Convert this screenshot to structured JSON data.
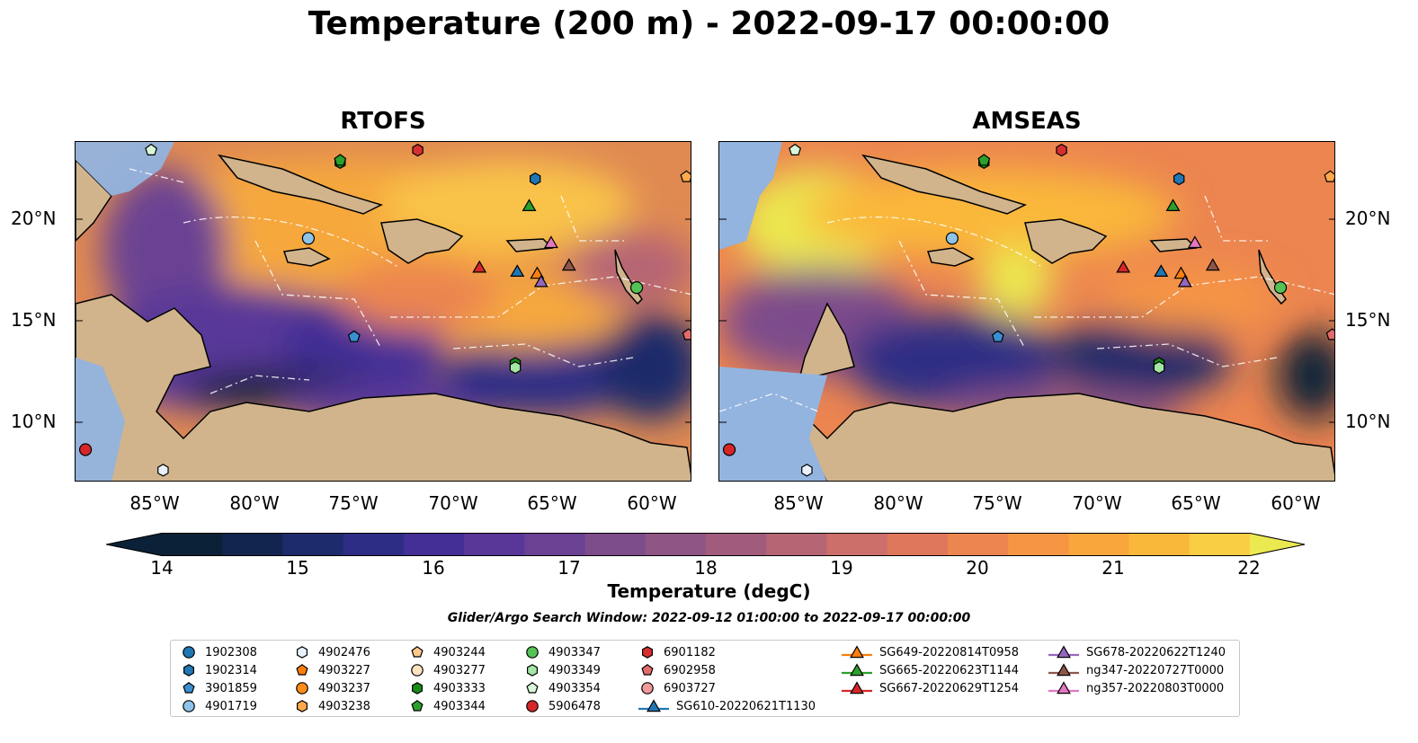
{
  "title": "Temperature (200 m) - 2022-09-17 00:00:00",
  "panels": [
    {
      "title": "RTOFS"
    },
    {
      "title": "AMSEAS"
    }
  ],
  "lat_ticks": [
    "20°N",
    "15°N",
    "10°N"
  ],
  "lon_ticks": [
    "85°W",
    "80°W",
    "75°W",
    "70°W",
    "65°W",
    "60°W"
  ],
  "colorbar": {
    "label": "Temperature (degC)",
    "ticks": [
      "14",
      "15",
      "16",
      "17",
      "18",
      "19",
      "20",
      "21",
      "22"
    ],
    "min": 14,
    "max": 22,
    "step": 0.5,
    "colors": [
      "#0b2138",
      "#12254f",
      "#1d2a6b",
      "#2e2d85",
      "#432f96",
      "#583799",
      "#6b4293",
      "#7d4c8b",
      "#8f5583",
      "#a15c7d",
      "#b66575",
      "#cc6e6a",
      "#df775d",
      "#ec8550",
      "#f69544",
      "#f9a63c",
      "#fab83b",
      "#f9cd44",
      "#ebe950"
    ]
  },
  "search_window": "Glider/Argo Search Window: 2022-09-12 01:00:00 to 2022-09-17 00:00:00",
  "legend": [
    {
      "label": "1902308",
      "marker": "circle",
      "color": "#1f77b4"
    },
    {
      "label": "1902314",
      "marker": "hexagon",
      "color": "#1f77b4"
    },
    {
      "label": "3901859",
      "marker": "pentagon",
      "color": "#3a8fd0"
    },
    {
      "label": "4901719",
      "marker": "circle",
      "color": "#8fc3ea"
    },
    {
      "label": "4902476",
      "marker": "hexagon",
      "color": "#e8f1fb"
    },
    {
      "label": "4903227",
      "marker": "pentagon",
      "color": "#ff7f0e"
    },
    {
      "label": "4903237",
      "marker": "circle",
      "color": "#ff8c1a"
    },
    {
      "label": "4903238",
      "marker": "hexagon",
      "color": "#ffa94d"
    },
    {
      "label": "4903244",
      "marker": "pentagon",
      "color": "#ffc98a"
    },
    {
      "label": "4903277",
      "marker": "circle",
      "color": "#ffe2c0"
    },
    {
      "label": "4903333",
      "marker": "hexagon",
      "color": "#1a8c1a"
    },
    {
      "label": "4903344",
      "marker": "pentagon",
      "color": "#2ca02c"
    },
    {
      "label": "4903347",
      "marker": "circle",
      "color": "#55c255"
    },
    {
      "label": "4903349",
      "marker": "hexagon",
      "color": "#a4e6a4"
    },
    {
      "label": "4903354",
      "marker": "pentagon",
      "color": "#d9f7d9"
    },
    {
      "label": "5906478",
      "marker": "circle",
      "color": "#d62728"
    },
    {
      "label": "6901182",
      "marker": "hexagon",
      "color": "#d62f2f"
    },
    {
      "label": "6902958",
      "marker": "pentagon",
      "color": "#e36a6a"
    },
    {
      "label": "6903727",
      "marker": "circle",
      "color": "#f19a9a"
    },
    {
      "label": "SG610-20220621T1130",
      "marker": "triangle-line",
      "color": "#1f77b4"
    },
    {
      "label": "SG649-20220814T0958",
      "marker": "triangle-line",
      "color": "#ff7f0e"
    },
    {
      "label": "SG665-20220623T1144",
      "marker": "triangle-line",
      "color": "#2ca02c"
    },
    {
      "label": "SG667-20220629T1254",
      "marker": "triangle-line",
      "color": "#d62728"
    },
    {
      "label": "SG678-20220622T1240",
      "marker": "triangle-line",
      "color": "#9467bd"
    },
    {
      "label": "ng347-20220727T0000",
      "marker": "triangle-line",
      "color": "#8c564b"
    },
    {
      "label": "ng357-20220803T0000",
      "marker": "triangle-line",
      "color": "#e377c2"
    }
  ],
  "map_extent": {
    "lon": [
      -89,
      -58
    ],
    "lat": [
      7.2,
      23.8
    ]
  },
  "platforms": [
    {
      "lon": -85.2,
      "lat": 23.4,
      "marker": "pentagon",
      "color": "#d9f7d9"
    },
    {
      "lon": -75.7,
      "lat": 22.8,
      "marker": "hexagon",
      "color": "#1a8c1a"
    },
    {
      "lon": -75.7,
      "lat": 22.9,
      "marker": "pentagon",
      "color": "#2ca02c"
    },
    {
      "lon": -71.8,
      "lat": 23.4,
      "marker": "hexagon",
      "color": "#d62f2f"
    },
    {
      "lon": -65.9,
      "lat": 22.0,
      "marker": "hexagon",
      "color": "#1f77b4"
    },
    {
      "lon": -58.3,
      "lat": 22.1,
      "marker": "pentagon",
      "color": "#ffa94d"
    },
    {
      "lon": -66.2,
      "lat": 20.7,
      "marker": "triangle",
      "color": "#2ca02c"
    },
    {
      "lon": -77.3,
      "lat": 19.1,
      "marker": "circle",
      "color": "#8fc3ea"
    },
    {
      "lon": -65.1,
      "lat": 18.9,
      "marker": "triangle",
      "color": "#e377c2"
    },
    {
      "lon": -68.7,
      "lat": 17.7,
      "marker": "triangle",
      "color": "#d62728"
    },
    {
      "lon": -66.8,
      "lat": 17.5,
      "marker": "triangle",
      "color": "#1f77b4"
    },
    {
      "lon": -65.8,
      "lat": 17.4,
      "marker": "triangle",
      "color": "#ff7f0e"
    },
    {
      "lon": -65.6,
      "lat": 17.0,
      "marker": "triangle",
      "color": "#9467bd"
    },
    {
      "lon": -64.2,
      "lat": 17.8,
      "marker": "triangle",
      "color": "#8c564b"
    },
    {
      "lon": -60.8,
      "lat": 16.7,
      "marker": "circle",
      "color": "#55c255"
    },
    {
      "lon": -58.2,
      "lat": 14.4,
      "marker": "pentagon",
      "color": "#e36a6a"
    },
    {
      "lon": -75.0,
      "lat": 14.3,
      "marker": "pentagon",
      "color": "#3a8fd0"
    },
    {
      "lon": -66.9,
      "lat": 13.0,
      "marker": "hexagon",
      "color": "#1a8c1a"
    },
    {
      "lon": -66.9,
      "lat": 12.8,
      "marker": "hexagon",
      "color": "#a4e6a4"
    },
    {
      "lon": -88.5,
      "lat": 8.8,
      "marker": "circle",
      "color": "#d62728"
    },
    {
      "lon": -84.6,
      "lat": 7.8,
      "marker": "hexagon",
      "color": "#e8f1fb"
    }
  ]
}
